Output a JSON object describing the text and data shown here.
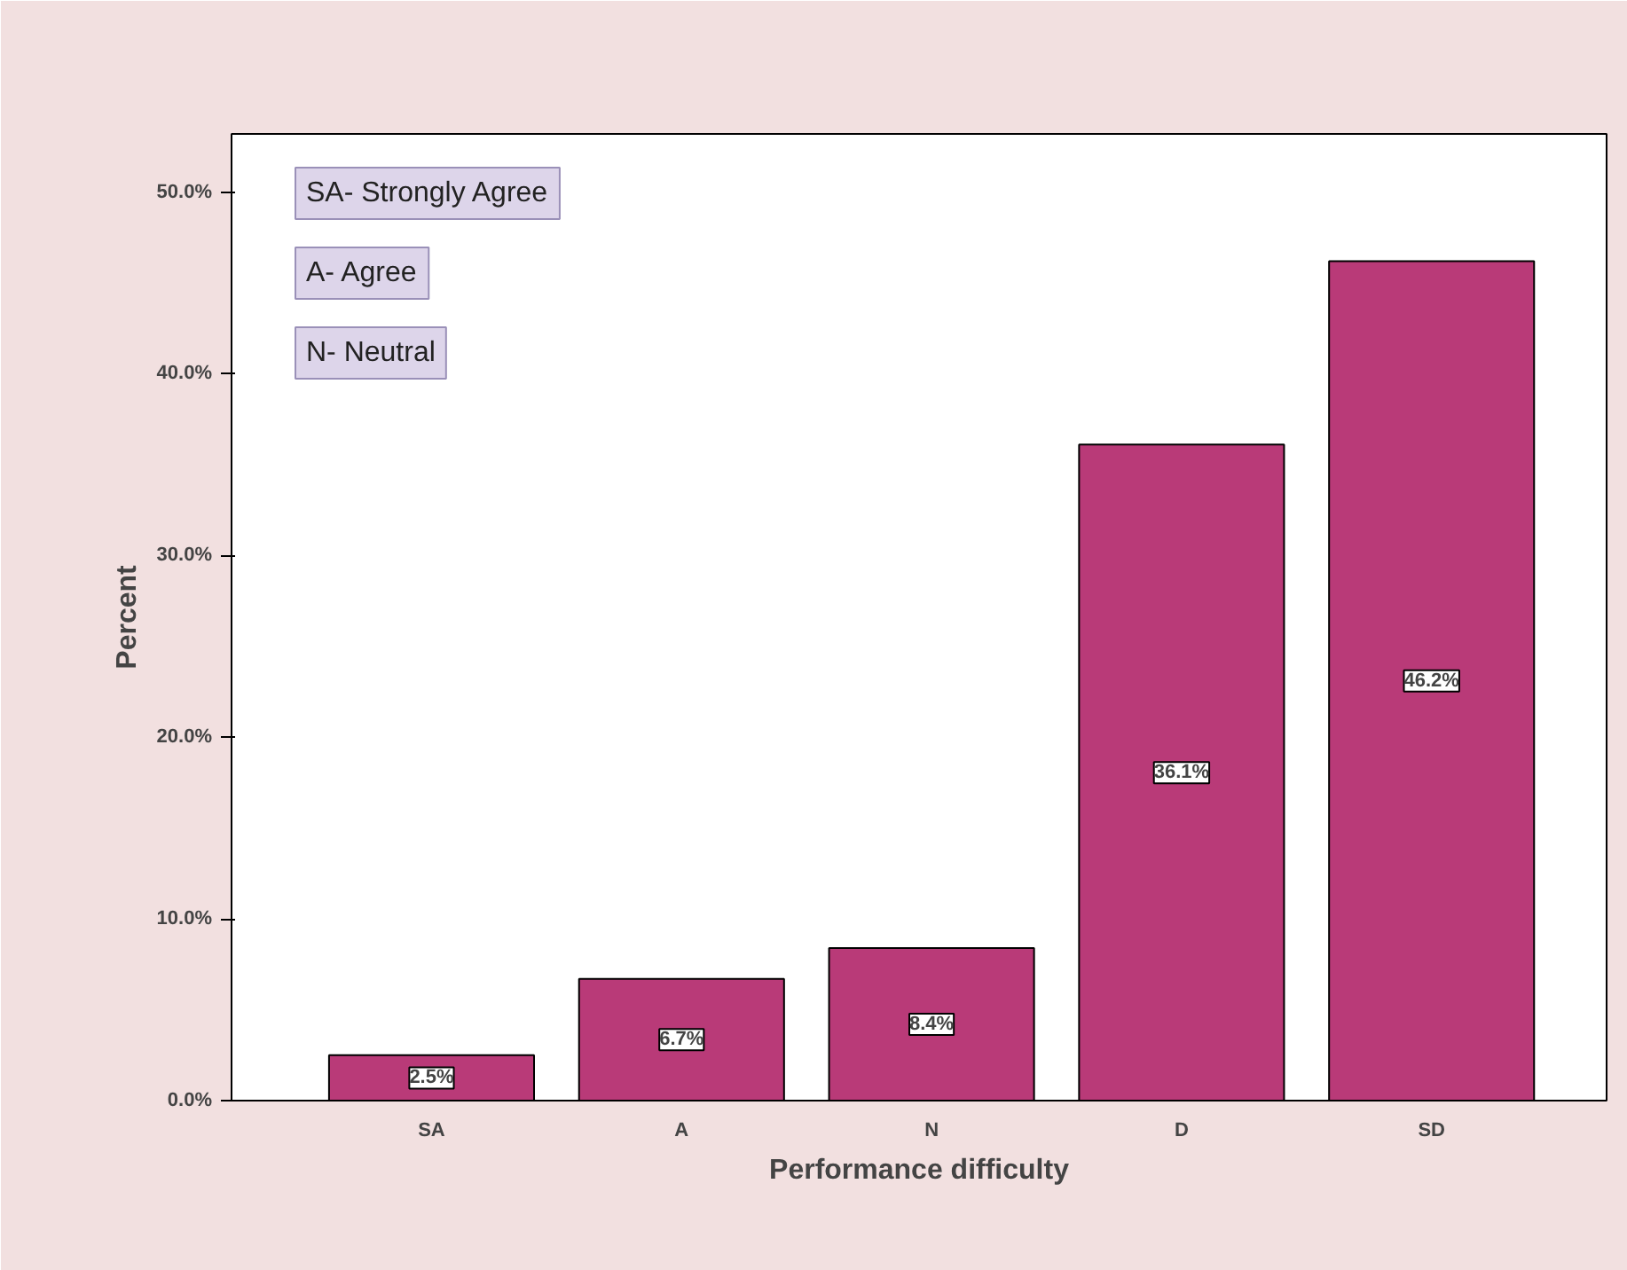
{
  "chart_data": {
    "type": "bar",
    "xlabel": "Performance difficulty",
    "ylabel": "Percent",
    "categories": [
      "SA",
      "A",
      "N",
      "D",
      "SD"
    ],
    "values": [
      2.5,
      6.7,
      8.4,
      36.1,
      46.2
    ],
    "color": "#b93a78",
    "value_labels": [
      "2.5%",
      "6.7%",
      "8.4%",
      "36.1%",
      "46.2%"
    ],
    "ylim": [
      0,
      53.2
    ],
    "yticks": [
      {
        "value": 0,
        "label": "0.0%"
      },
      {
        "value": 10,
        "label": "10.0%"
      },
      {
        "value": 20,
        "label": "20.0%"
      },
      {
        "value": 30,
        "label": "30.0%"
      },
      {
        "value": 40,
        "label": "40.0%"
      },
      {
        "value": 50,
        "label": "50.0%"
      }
    ],
    "annotations": [
      "SA- Strongly Agree",
      "A- Agree",
      "N- Neutral"
    ],
    "grid": false
  }
}
